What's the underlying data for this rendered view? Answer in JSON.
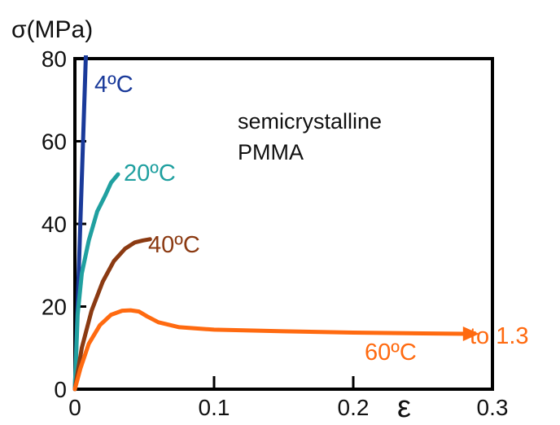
{
  "chart_data": {
    "type": "line",
    "ylabel": "σ(MPa)",
    "xlabel": "ε",
    "xlim": [
      0,
      0.3
    ],
    "ylim": [
      0,
      80
    ],
    "xticks": [
      "0",
      "0.1",
      "0.2",
      "0.3"
    ],
    "yticks": [
      "0",
      "20",
      "40",
      "60",
      "80"
    ],
    "xtick_values": [
      0,
      0.1,
      0.2,
      0.3
    ],
    "ytick_values": [
      0,
      20,
      40,
      60,
      80
    ],
    "grid": false,
    "annotation": [
      "semicrystalline",
      "PMMA"
    ],
    "series": [
      {
        "name": "4ºC",
        "color": "#1a3a9a",
        "x": [
          0,
          0.008
        ],
        "y": [
          0,
          82
        ]
      },
      {
        "name": "20ºC",
        "color": "#20a0a0",
        "x": [
          0,
          0.002,
          0.005,
          0.01,
          0.016,
          0.022,
          0.026,
          0.031
        ],
        "y": [
          0,
          18,
          28,
          36,
          43,
          47,
          50,
          52
        ]
      },
      {
        "name": "40ºC",
        "color": "#8b3a12",
        "x": [
          0,
          0.005,
          0.012,
          0.02,
          0.028,
          0.036,
          0.043,
          0.049,
          0.054
        ],
        "y": [
          0,
          10,
          19,
          26,
          31,
          34,
          35.5,
          36,
          36.3
        ]
      },
      {
        "name": "60ºC",
        "color": "#ff6a10",
        "x": [
          0,
          0.004,
          0.01,
          0.018,
          0.026,
          0.034,
          0.04,
          0.046,
          0.052,
          0.06,
          0.075,
          0.1,
          0.15,
          0.2,
          0.25,
          0.28
        ],
        "y": [
          0,
          5,
          11,
          15.5,
          18,
          19,
          19.1,
          18.8,
          17.6,
          16.2,
          15,
          14.4,
          14,
          13.7,
          13.5,
          13.4
        ]
      }
    ],
    "arrow_label": "to 1.3",
    "arrow_color": "#ff6a10"
  }
}
